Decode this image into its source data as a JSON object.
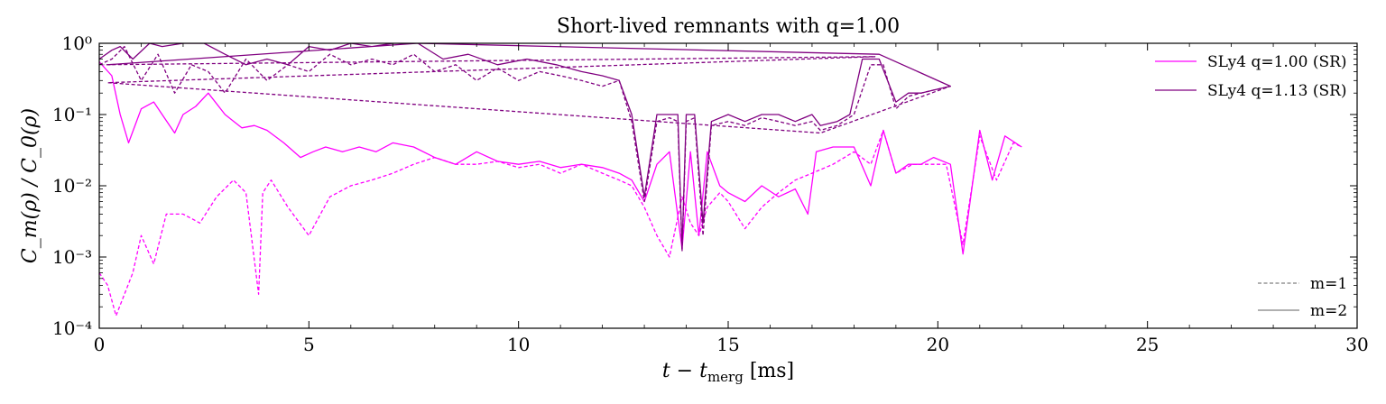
{
  "chart_data": {
    "type": "line",
    "title": "Short-lived remnants with q=1.00",
    "xlabel_main": "t − t",
    "xlabel_sub": "merg",
    "xlabel_unit": " [ms]",
    "ylabel": "C_m(ρ) / C_0(ρ)",
    "xlim": [
      0,
      30
    ],
    "ylim": [
      0.0001,
      1
    ],
    "yscale": "log",
    "x_ticks": [
      0,
      5,
      10,
      15,
      20,
      25,
      30
    ],
    "x_tick_labels": [
      "0",
      "5",
      "10",
      "15",
      "20",
      "25",
      "30"
    ],
    "y_ticks": [
      0.0001,
      0.001,
      0.01,
      0.1,
      1
    ],
    "y_tick_labels": [
      "10⁻⁴",
      "10⁻³",
      "10⁻²",
      "10⁻¹",
      "10⁰"
    ],
    "grid": false,
    "legend_series_placement": "top-right",
    "legend_modes_placement": "bottom-right",
    "legend_series": [
      {
        "label": "SLy4 q=1.00 (SR)",
        "color": "#ff00ff"
      },
      {
        "label": "SLy4 q=1.13 (SR)",
        "color": "#800080"
      }
    ],
    "legend_modes": [
      {
        "label": "m=1",
        "dash": "dashed"
      },
      {
        "label": "m=2",
        "dash": "solid"
      }
    ],
    "series": [
      {
        "name": "SLy4 q=1.00 (SR), m=2",
        "color": "#ff00ff",
        "dash": "solid",
        "x": [
          0,
          0.3,
          0.5,
          0.7,
          1.0,
          1.3,
          1.5,
          1.8,
          2.0,
          2.3,
          2.6,
          3.0,
          3.4,
          3.7,
          4.0,
          4.4,
          4.8,
          5.1,
          5.4,
          5.8,
          6.2,
          6.6,
          7.0,
          7.5,
          8.0,
          8.5,
          9.0,
          9.5,
          10.0,
          10.5,
          11.0,
          11.5,
          12.0,
          12.4,
          12.7,
          13.0,
          13.3,
          13.6,
          13.9,
          14.1,
          14.3,
          14.5,
          14.8,
          15.0,
          15.4,
          15.8,
          16.2,
          16.6,
          16.9,
          17.1,
          17.5,
          18.0,
          18.4,
          18.7,
          19.0,
          19.3,
          19.6,
          19.9,
          20.3,
          20.6,
          21.0,
          21.3,
          21.6,
          22.0
        ],
        "y": [
          0.55,
          0.35,
          0.1,
          0.04,
          0.12,
          0.15,
          0.1,
          0.055,
          0.1,
          0.13,
          0.2,
          0.1,
          0.065,
          0.07,
          0.06,
          0.04,
          0.025,
          0.03,
          0.035,
          0.03,
          0.035,
          0.03,
          0.04,
          0.035,
          0.025,
          0.02,
          0.03,
          0.022,
          0.02,
          0.022,
          0.018,
          0.02,
          0.018,
          0.015,
          0.012,
          0.006,
          0.02,
          0.03,
          0.0013,
          0.03,
          0.002,
          0.03,
          0.01,
          0.008,
          0.006,
          0.01,
          0.007,
          0.009,
          0.004,
          0.03,
          0.035,
          0.035,
          0.01,
          0.06,
          0.015,
          0.02,
          0.02,
          0.025,
          0.02,
          0.0011,
          0.06,
          0.012,
          0.05,
          0.035
        ]
      },
      {
        "name": "SLy4 q=1.00 (SR), m=1",
        "color": "#ff00ff",
        "dash": "dashed",
        "x": [
          0,
          0.2,
          0.4,
          0.6,
          0.8,
          1.0,
          1.3,
          1.6,
          2.0,
          2.4,
          2.8,
          3.2,
          3.5,
          3.8,
          3.9,
          4.1,
          4.5,
          5.0,
          5.5,
          6.0,
          6.5,
          7.0,
          7.5,
          8.0,
          8.5,
          9.0,
          9.5,
          10.0,
          10.5,
          11.0,
          11.5,
          12.0,
          12.4,
          12.7,
          13.0,
          13.3,
          13.6,
          13.9,
          14.1,
          14.3,
          14.5,
          14.8,
          15.0,
          15.4,
          15.8,
          16.2,
          16.6,
          17.0,
          17.5,
          18.0,
          18.4,
          18.7,
          19.0,
          19.4,
          19.8,
          20.2,
          20.6,
          21.0,
          21.4,
          21.8,
          22.0
        ],
        "y": [
          0.0006,
          0.0004,
          0.00015,
          0.0003,
          0.0006,
          0.002,
          0.0008,
          0.004,
          0.004,
          0.003,
          0.007,
          0.012,
          0.008,
          0.0003,
          0.008,
          0.012,
          0.005,
          0.002,
          0.007,
          0.01,
          0.012,
          0.015,
          0.02,
          0.025,
          0.02,
          0.02,
          0.022,
          0.018,
          0.02,
          0.015,
          0.02,
          0.015,
          0.012,
          0.01,
          0.005,
          0.002,
          0.001,
          0.007,
          0.003,
          0.002,
          0.005,
          0.008,
          0.006,
          0.0025,
          0.005,
          0.008,
          0.012,
          0.015,
          0.02,
          0.03,
          0.02,
          0.06,
          0.015,
          0.02,
          0.02,
          0.02,
          0.0015,
          0.05,
          0.012,
          0.04,
          0.035
        ]
      },
      {
        "name": "SLy4 q=1.13 (SR), m=2",
        "color": "#800080",
        "dash": "solid",
        "x": [
          0,
          0.3,
          0.5,
          0.8,
          1.2,
          1.5,
          2.0,
          2.5,
          3.0,
          3.5,
          4.0,
          4.5,
          5.0,
          5.5,
          6.0,
          6.5,
          7.0,
          7.6,
          8.2,
          8.8,
          9.5,
          10.2,
          10.9,
          11.5,
          12.0,
          12.4,
          12.7,
          13.0,
          13.3,
          13.6,
          13.8,
          13.9,
          14.0,
          14.2,
          14.4,
          14.6,
          15.0,
          15.4,
          15.8,
          16.2,
          16.6,
          17.0,
          17.2,
          17.6,
          17.9,
          18.2,
          18.6,
          19.0,
          19.3,
          19.6,
          19.9,
          20.3,
          18.6,
          7.6,
          0.2
        ],
        "y": [
          0.6,
          0.8,
          0.9,
          0.6,
          1.0,
          0.9,
          1.0,
          1.0,
          0.7,
          0.5,
          0.6,
          0.5,
          0.9,
          0.8,
          1.0,
          0.9,
          1.0,
          1.0,
          0.6,
          0.7,
          0.5,
          0.6,
          0.5,
          0.4,
          0.35,
          0.3,
          0.1,
          0.007,
          0.1,
          0.1,
          0.1,
          0.0013,
          0.1,
          0.1,
          0.003,
          0.08,
          0.1,
          0.08,
          0.1,
          0.1,
          0.08,
          0.1,
          0.07,
          0.08,
          0.1,
          0.6,
          0.6,
          0.15,
          0.2,
          0.2,
          0.22,
          0.25,
          0.7,
          1.0,
          0.5
        ]
      },
      {
        "name": "SLy4 q=1.13 (SR), m=1",
        "color": "#800080",
        "dash": "dashed",
        "x": [
          0,
          0.3,
          0.6,
          1.0,
          1.4,
          1.8,
          2.2,
          2.6,
          3.0,
          3.5,
          4.0,
          4.5,
          5.0,
          5.5,
          6.0,
          6.5,
          7.0,
          7.5,
          8.0,
          8.5,
          9.0,
          9.5,
          10.0,
          10.5,
          11.0,
          11.5,
          12.0,
          12.4,
          12.7,
          13.0,
          13.3,
          13.6,
          13.8,
          13.9,
          14.0,
          14.2,
          14.4,
          14.6,
          15.0,
          15.4,
          15.8,
          16.2,
          16.6,
          17.0,
          17.2,
          17.6,
          18.0,
          18.4,
          18.7,
          19.0,
          19.3,
          19.6,
          19.9,
          20.3,
          17.2,
          0.2,
          18.5,
          0.1
        ],
        "y": [
          0.5,
          0.6,
          0.9,
          0.3,
          0.7,
          0.2,
          0.5,
          0.4,
          0.2,
          0.6,
          0.3,
          0.5,
          0.4,
          0.7,
          0.5,
          0.6,
          0.5,
          0.7,
          0.4,
          0.5,
          0.3,
          0.45,
          0.3,
          0.4,
          0.35,
          0.3,
          0.25,
          0.3,
          0.08,
          0.006,
          0.08,
          0.09,
          0.08,
          0.0012,
          0.08,
          0.09,
          0.002,
          0.07,
          0.08,
          0.07,
          0.09,
          0.08,
          0.07,
          0.08,
          0.06,
          0.07,
          0.1,
          0.5,
          0.5,
          0.12,
          0.18,
          0.2,
          0.22,
          0.25,
          0.055,
          0.28,
          0.65,
          0.5
        ]
      }
    ]
  }
}
